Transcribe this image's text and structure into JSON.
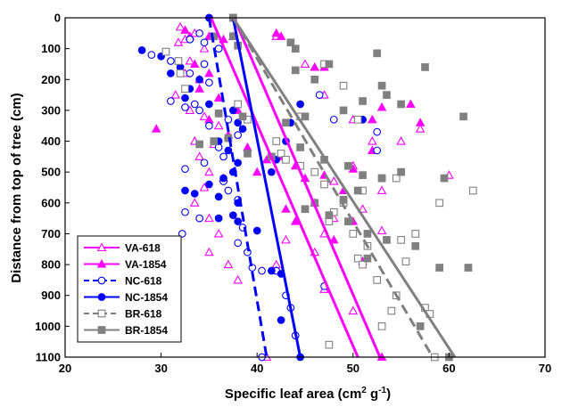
{
  "chart_data": {
    "type": "scatter",
    "xlabel": "Specific leaf area (cm",
    "xlabel_sup": "2",
    "xlabel_mid": " g",
    "xlabel_sup2": "-1",
    "xlabel_end": ")",
    "ylabel": "Distance from top of tree (cm)",
    "xlim": [
      20,
      70
    ],
    "ylim": [
      0,
      1100
    ],
    "y_inverted": true,
    "x_ticks": [
      20,
      30,
      40,
      50,
      60,
      70
    ],
    "y_ticks": [
      0,
      100,
      200,
      300,
      400,
      500,
      600,
      700,
      800,
      900,
      1000,
      1100
    ],
    "grid": false,
    "legend_position": "bottom-left",
    "series": [
      {
        "name": "VA-618",
        "color": "#ff00ff",
        "marker": "triangle",
        "filled": false,
        "line_style": "none",
        "fit": [
          [
            35.2,
            0
          ],
          [
            50.5,
            1100
          ]
        ],
        "points": [
          [
            32,
            30
          ],
          [
            32.5,
            70
          ],
          [
            33.5,
            50
          ],
          [
            31.8,
            80
          ],
          [
            34.5,
            100
          ],
          [
            33,
            140
          ],
          [
            32.5,
            180
          ],
          [
            34,
            200
          ],
          [
            31.5,
            250
          ],
          [
            33,
            300
          ],
          [
            34.5,
            320
          ],
          [
            36,
            350
          ],
          [
            33.5,
            400
          ],
          [
            35.5,
            410
          ],
          [
            34,
            450
          ],
          [
            35,
            500
          ],
          [
            36.5,
            520
          ],
          [
            34.5,
            550
          ],
          [
            33.5,
            600
          ],
          [
            35,
            650
          ],
          [
            36,
            700
          ],
          [
            35,
            760
          ],
          [
            37,
            800
          ],
          [
            38,
            850
          ],
          [
            42,
            60
          ],
          [
            45,
            150
          ],
          [
            47,
            250
          ],
          [
            50,
            330
          ],
          [
            52,
            400
          ],
          [
            55,
            400
          ],
          [
            57,
            360
          ],
          [
            50,
            480
          ],
          [
            48,
            530
          ],
          [
            53,
            560
          ],
          [
            60,
            510
          ],
          [
            51,
            620
          ],
          [
            48,
            650
          ],
          [
            53,
            690
          ],
          [
            47,
            700
          ],
          [
            43,
            720
          ],
          [
            46,
            760
          ],
          [
            42,
            800
          ],
          [
            42,
            820
          ],
          [
            47,
            880
          ],
          [
            50,
            950
          ],
          [
            41,
            1100
          ]
        ]
      },
      {
        "name": "VA-1854",
        "color": "#ff00ff",
        "marker": "triangle",
        "filled": true,
        "line_style": "solid",
        "fit": [
          [
            37.6,
            0
          ],
          [
            52.8,
            1100
          ]
        ],
        "points": [
          [
            32.5,
            40
          ],
          [
            33,
            60
          ],
          [
            35,
            60
          ],
          [
            36.5,
            70
          ],
          [
            37.5,
            60
          ],
          [
            42,
            50
          ],
          [
            42.5,
            60
          ],
          [
            46,
            160
          ],
          [
            47,
            160
          ],
          [
            29.5,
            360
          ],
          [
            33.5,
            150
          ],
          [
            35,
            180
          ],
          [
            34,
            230
          ],
          [
            36,
            260
          ],
          [
            38,
            300
          ],
          [
            35,
            330
          ],
          [
            37,
            380
          ],
          [
            39,
            420
          ],
          [
            41,
            460
          ],
          [
            40,
            500
          ],
          [
            42.5,
            450
          ],
          [
            44,
            480
          ],
          [
            45,
            520
          ],
          [
            47,
            510
          ],
          [
            50,
            490
          ],
          [
            52,
            430
          ],
          [
            53,
            290
          ],
          [
            56,
            280
          ],
          [
            57,
            340
          ],
          [
            52,
            330
          ],
          [
            49,
            560
          ],
          [
            46,
            600
          ],
          [
            43,
            620
          ],
          [
            44,
            660
          ],
          [
            50,
            660
          ],
          [
            48,
            720
          ],
          [
            51,
            790
          ],
          [
            53,
            1100
          ]
        ]
      },
      {
        "name": "NC-618",
        "color": "#0000ff",
        "marker": "circle",
        "filled": false,
        "line_style": "dashed",
        "fit": [
          [
            35.0,
            0
          ],
          [
            41.0,
            1100
          ]
        ],
        "points": [
          [
            35,
            0
          ],
          [
            36,
            100
          ],
          [
            33,
            70
          ],
          [
            34,
            50
          ],
          [
            34.5,
            80
          ],
          [
            29,
            120
          ],
          [
            31,
            140
          ],
          [
            34.5,
            150
          ],
          [
            33,
            180
          ],
          [
            35,
            210
          ],
          [
            31,
            270
          ],
          [
            33.5,
            280
          ],
          [
            32.5,
            290
          ],
          [
            34,
            300
          ],
          [
            36,
            310
          ],
          [
            37,
            330
          ],
          [
            35,
            350
          ],
          [
            38,
            380
          ],
          [
            36,
            420
          ],
          [
            36.5,
            450
          ],
          [
            34.5,
            470
          ],
          [
            32.5,
            490
          ],
          [
            36.5,
            530
          ],
          [
            37,
            560
          ],
          [
            38,
            590
          ],
          [
            32.5,
            630
          ],
          [
            34,
            650
          ],
          [
            38.5,
            680
          ],
          [
            32.2,
            700
          ],
          [
            38,
            730
          ],
          [
            39,
            760
          ],
          [
            39.5,
            810
          ],
          [
            40.5,
            820
          ],
          [
            40.5,
            1100
          ],
          [
            42,
            820
          ],
          [
            43,
            900
          ],
          [
            43.5,
            940
          ],
          [
            44,
            1030
          ],
          [
            46.5,
            250
          ],
          [
            48,
            330
          ],
          [
            51,
            330
          ],
          [
            52.5,
            370
          ],
          [
            52.5,
            430
          ],
          [
            47,
            870
          ]
        ]
      },
      {
        "name": "NC-1854",
        "color": "#0000ff",
        "marker": "circle",
        "filled": true,
        "line_style": "solid",
        "fit": [
          [
            37.5,
            0
          ],
          [
            44.5,
            1100
          ]
        ],
        "points": [
          [
            37.5,
            0
          ],
          [
            35,
            0
          ],
          [
            28,
            105
          ],
          [
            30,
            125
          ],
          [
            32,
            160
          ],
          [
            34,
            200
          ],
          [
            33,
            230
          ],
          [
            31,
            180
          ],
          [
            32.5,
            260
          ],
          [
            35,
            280
          ],
          [
            37.5,
            300
          ],
          [
            38,
            340
          ],
          [
            38.5,
            360
          ],
          [
            36,
            400
          ],
          [
            37,
            430
          ],
          [
            38,
            470
          ],
          [
            37.5,
            500
          ],
          [
            36.5,
            520
          ],
          [
            35,
            540
          ],
          [
            32.5,
            560
          ],
          [
            33.5,
            570
          ],
          [
            36,
            580
          ],
          [
            38,
            600
          ],
          [
            37.5,
            640
          ],
          [
            36,
            650
          ],
          [
            38,
            660
          ],
          [
            40,
            690
          ],
          [
            41.5,
            500
          ],
          [
            42,
            460
          ],
          [
            43,
            400
          ],
          [
            43.5,
            340
          ],
          [
            44.5,
            280
          ],
          [
            41.5,
            820
          ],
          [
            42.5,
            830
          ],
          [
            42.5,
            980
          ],
          [
            44.5,
            1100
          ],
          [
            51,
            330
          ]
        ]
      },
      {
        "name": "BR-618",
        "color": "#808080",
        "marker": "square",
        "filled": false,
        "line_style": "dashed",
        "fit": [
          [
            37.5,
            0
          ],
          [
            58.3,
            1100
          ]
        ],
        "points": [
          [
            37.5,
            0
          ],
          [
            30.5,
            110
          ],
          [
            31.8,
            140
          ],
          [
            32,
            180
          ],
          [
            32.5,
            230
          ],
          [
            38,
            280
          ],
          [
            39,
            330
          ],
          [
            42,
            400
          ],
          [
            42.5,
            440
          ],
          [
            43,
            460
          ],
          [
            44.5,
            480
          ],
          [
            46,
            500
          ],
          [
            47,
            540
          ],
          [
            49,
            600
          ],
          [
            48,
            630
          ],
          [
            47.5,
            660
          ],
          [
            50,
            700
          ],
          [
            51.5,
            740
          ],
          [
            50.5,
            780
          ],
          [
            51,
            800
          ],
          [
            52.5,
            850
          ],
          [
            54.5,
            900
          ],
          [
            54,
            950
          ],
          [
            55,
            720
          ],
          [
            55.5,
            790
          ],
          [
            57.5,
            940
          ],
          [
            58,
            960
          ],
          [
            58.5,
            1100
          ],
          [
            53,
            1000
          ],
          [
            47.5,
            1060
          ],
          [
            56.5,
            700
          ],
          [
            62.5,
            560
          ],
          [
            59,
            600
          ],
          [
            50.5,
            330
          ],
          [
            53,
            520
          ],
          [
            51,
            560
          ],
          [
            47,
            150
          ],
          [
            49,
            220
          ],
          [
            44.5,
            320
          ],
          [
            54.5,
            520
          ]
        ]
      },
      {
        "name": "BR-1854",
        "color": "#808080",
        "marker": "square",
        "filled": true,
        "line_style": "solid",
        "fit": [
          [
            37.5,
            0
          ],
          [
            60.6,
            1100
          ]
        ],
        "points": [
          [
            37.5,
            0
          ],
          [
            35.5,
            60
          ],
          [
            37.5,
            60
          ],
          [
            38,
            90
          ],
          [
            43.5,
            80
          ],
          [
            44,
            100
          ],
          [
            52.5,
            115
          ],
          [
            57.5,
            160
          ],
          [
            44,
            170
          ],
          [
            47.5,
            150
          ],
          [
            46,
            200
          ],
          [
            53,
            220
          ],
          [
            53.5,
            250
          ],
          [
            55,
            280
          ],
          [
            51,
            270
          ],
          [
            49,
            300
          ],
          [
            45,
            320
          ],
          [
            43,
            340
          ],
          [
            38.5,
            320
          ],
          [
            36,
            310
          ],
          [
            37,
            390
          ],
          [
            34,
            410
          ],
          [
            35.5,
            400
          ],
          [
            39,
            440
          ],
          [
            41.5,
            450
          ],
          [
            44.5,
            420
          ],
          [
            47,
            460
          ],
          [
            49.5,
            480
          ],
          [
            51,
            510
          ],
          [
            53,
            520
          ],
          [
            55,
            500
          ],
          [
            50.5,
            560
          ],
          [
            49,
            590
          ],
          [
            46,
            600
          ],
          [
            45,
            620
          ],
          [
            47.5,
            640
          ],
          [
            49.5,
            660
          ],
          [
            51.5,
            700
          ],
          [
            53.5,
            720
          ],
          [
            56.5,
            740
          ],
          [
            51.5,
            780
          ],
          [
            59,
            810
          ],
          [
            62,
            810
          ],
          [
            61.5,
            320
          ],
          [
            59.5,
            520
          ],
          [
            60,
            1100
          ],
          [
            57,
            1000
          ]
        ]
      }
    ]
  }
}
